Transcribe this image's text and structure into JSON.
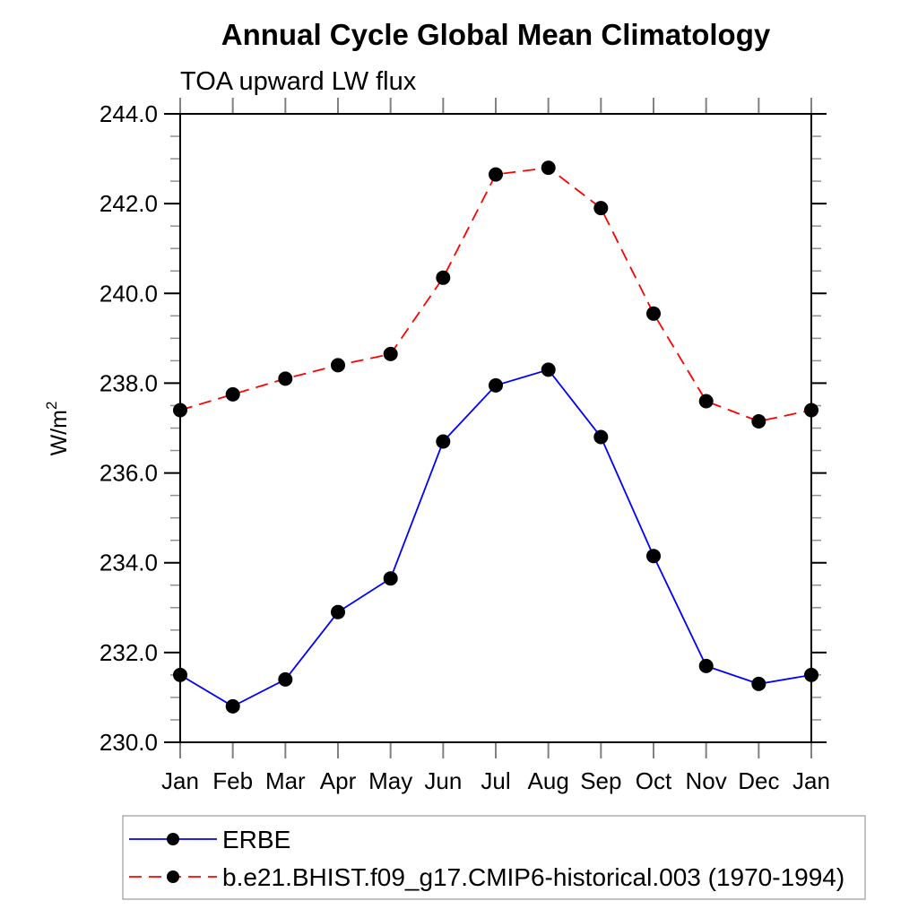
{
  "chart_data": {
    "type": "line",
    "title": "Annual Cycle Global Mean Climatology",
    "subtitle": "TOA upward LW flux",
    "ylabel": "W/m^2",
    "ylabel_parts": {
      "base": "W/m",
      "exp": "2"
    },
    "x_categories": [
      "Jan",
      "Feb",
      "Mar",
      "Apr",
      "May",
      "Jun",
      "Jul",
      "Aug",
      "Sep",
      "Oct",
      "Nov",
      "Dec",
      "Jan"
    ],
    "ylim": [
      230.0,
      244.0
    ],
    "ytick_major": 2.0,
    "ytick_minor": 0.5,
    "ytick_label_decimals": 1,
    "grid": false,
    "legend_position": "bottom-left-outside",
    "series": [
      {
        "id": "erbe",
        "name": "ERBE",
        "color": "#0000ff",
        "line_style": "solid",
        "marker": "circle",
        "marker_color": "#000000",
        "values": [
          231.5,
          230.8,
          231.4,
          232.9,
          233.65,
          236.7,
          237.95,
          238.3,
          236.8,
          234.15,
          231.7,
          231.3,
          231.5
        ]
      },
      {
        "id": "model",
        "name": "b.e21.BHIST.f09_g17.CMIP6-historical.003 (1970-1994)",
        "color": "#ff0000",
        "line_style": "dashed",
        "marker": "circle",
        "marker_color": "#000000",
        "values": [
          237.4,
          237.75,
          238.1,
          238.4,
          238.65,
          240.35,
          242.65,
          242.8,
          241.9,
          239.55,
          237.6,
          237.15,
          237.4
        ]
      }
    ],
    "colors": {
      "axis": "#000000",
      "major_tick": "#000000",
      "minor_tick": "#909090",
      "month_tick": "#808080",
      "legend_border": "#999999",
      "text": "#000000",
      "background": "#ffffff"
    }
  }
}
